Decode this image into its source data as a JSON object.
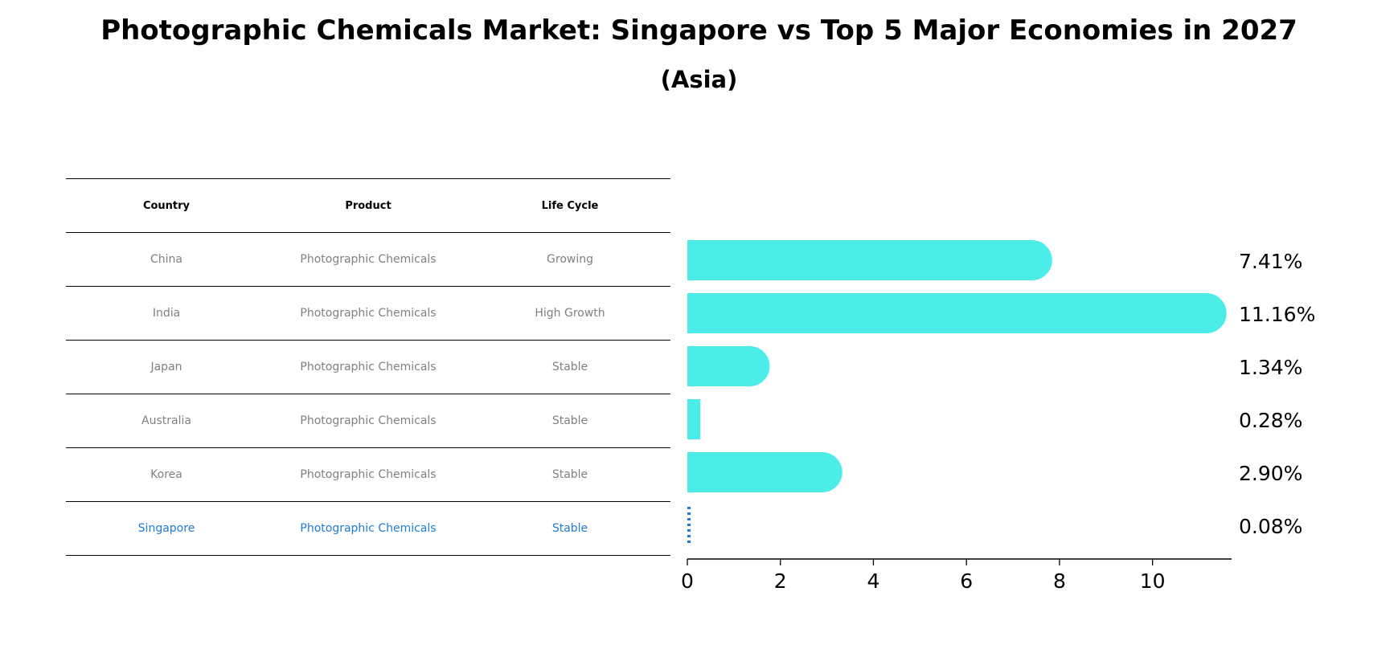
{
  "title": "Photographic Chemicals Market: Singapore vs Top 5 Major Economies in 2027",
  "subtitle": "(Asia)",
  "table": {
    "headers": [
      "Country",
      "Product",
      "Life Cycle"
    ],
    "rows": [
      {
        "country": "China",
        "product": "Photographic Chemicals",
        "life_cycle": "Growing"
      },
      {
        "country": "India",
        "product": "Photographic Chemicals",
        "life_cycle": "High Growth"
      },
      {
        "country": "Japan",
        "product": "Photographic Chemicals",
        "life_cycle": "Stable"
      },
      {
        "country": "Australia",
        "product": "Photographic Chemicals",
        "life_cycle": "Stable"
      },
      {
        "country": "Korea",
        "product": "Photographic Chemicals",
        "life_cycle": "Stable"
      },
      {
        "country": "Singapore",
        "product": "Photographic Chemicals",
        "life_cycle": "Stable"
      }
    ]
  },
  "colors": {
    "bar": "#4cede9",
    "highlight": "#1f7bd6",
    "text_muted": "#808080"
  },
  "chart_data": {
    "type": "bar",
    "orientation": "horizontal",
    "categories": [
      "China",
      "India",
      "Japan",
      "Australia",
      "Korea",
      "Singapore"
    ],
    "values": [
      7.41,
      11.16,
      1.34,
      0.28,
      2.9,
      0.08
    ],
    "value_labels": [
      "7.41%",
      "11.16%",
      "1.34%",
      "0.28%",
      "2.90%",
      "0.08%"
    ],
    "highlight_category": "Singapore",
    "xlim": [
      0,
      11.7
    ],
    "xticks": [
      0,
      2,
      4,
      6,
      8,
      10
    ],
    "grid": false,
    "legend": "none"
  }
}
